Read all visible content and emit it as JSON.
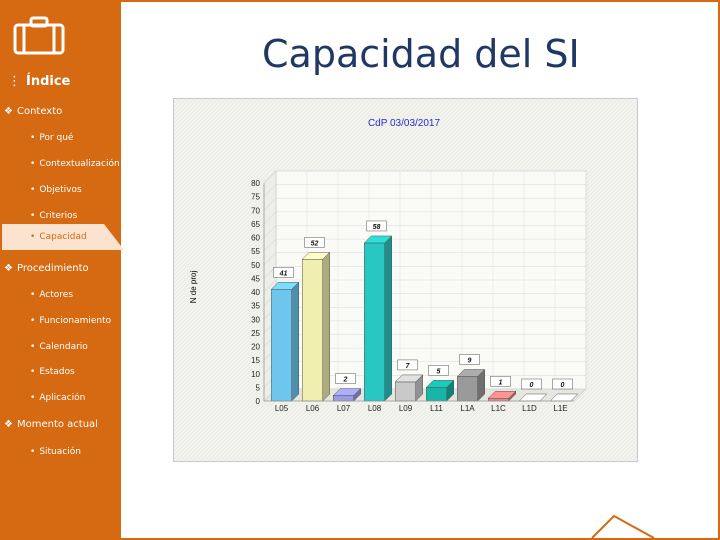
{
  "slide": {
    "title": "Capacidad del SI"
  },
  "sidebar": {
    "heading": "Índice",
    "sections": [
      {
        "label": "Contexto",
        "items": [
          "Por qué",
          "Contextualización",
          "Objetivos",
          "Criterios",
          "Capacidad"
        ]
      },
      {
        "label": "Procedimiento",
        "items": [
          "Actores",
          "Funcionamiento",
          "Calendario",
          "Estados",
          "Aplicación"
        ]
      },
      {
        "label": "Momento actual",
        "items": [
          "Situación"
        ]
      }
    ],
    "active_item": "Capacidad",
    "colors": {
      "background": "#d66a12",
      "active_bg": "#fbe3cf"
    }
  },
  "chart_data": {
    "type": "bar",
    "title": "CdP 03/03/2017",
    "xlabel": "",
    "ylabel": "N de proj",
    "ylim": [
      0,
      80
    ],
    "yticks": [
      0,
      5,
      10,
      15,
      20,
      25,
      30,
      35,
      40,
      45,
      50,
      55,
      60,
      65,
      70,
      75,
      80
    ],
    "categories": [
      "L05",
      "L06",
      "L07",
      "L08",
      "L09",
      "L11",
      "L1A",
      "L1C",
      "L1D",
      "L1E"
    ],
    "values": [
      41,
      52,
      2,
      58,
      7,
      5,
      9,
      1,
      0,
      0
    ],
    "data_labels": [
      "41",
      "52",
      "2",
      "58",
      "7",
      "5",
      "9",
      "1",
      "0",
      "0"
    ],
    "bar_colors": [
      "#6ec6ee",
      "#f1efb0",
      "#9a9ce2",
      "#28c7c2",
      "#c9c9c9",
      "#17b5a8",
      "#9a9a9a",
      "#e68484",
      "#ffffff",
      "#ffffff"
    ],
    "grid": true,
    "title_color": "#2a2ad0"
  }
}
